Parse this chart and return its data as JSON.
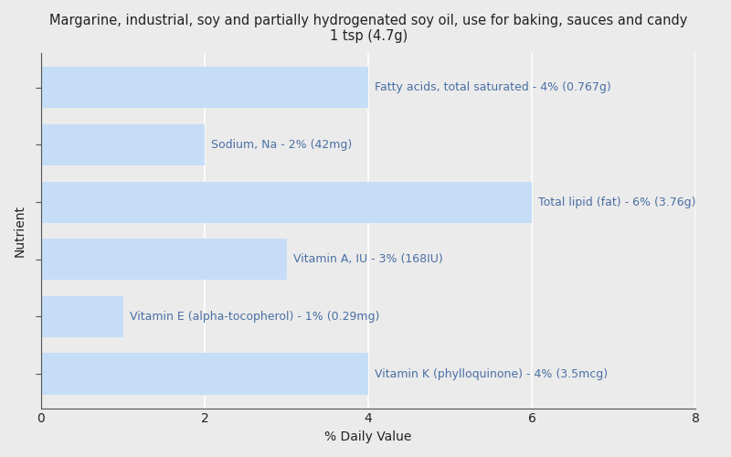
{
  "title_line1": "Margarine, industrial, soy and partially hydrogenated soy oil, use for baking, sauces and candy",
  "title_line2": "1 tsp (4.7g)",
  "xlabel": "% Daily Value",
  "ylabel": "Nutrient",
  "background_color": "#ebebeb",
  "plot_bg_color": "#ebebeb",
  "bar_color": "#c5ddf7",
  "text_color": "#4a6fa5",
  "axis_text_color": "#222222",
  "xlim": [
    0,
    8
  ],
  "nutrients": [
    "Fatty acids, total saturated - 4% (0.767g)",
    "Sodium, Na - 2% (42mg)",
    "Total lipid (fat) - 6% (3.76g)",
    "Vitamin A, IU - 3% (168IU)",
    "Vitamin E (alpha-tocopherol) - 1% (0.29mg)",
    "Vitamin K (phylloquinone) - 4% (3.5mcg)"
  ],
  "values": [
    4,
    2,
    6,
    3,
    1,
    4
  ],
  "xticks": [
    0,
    2,
    4,
    6,
    8
  ],
  "title_fontsize": 10.5,
  "axis_label_fontsize": 10,
  "bar_label_fontsize": 9,
  "tick_fontsize": 10
}
